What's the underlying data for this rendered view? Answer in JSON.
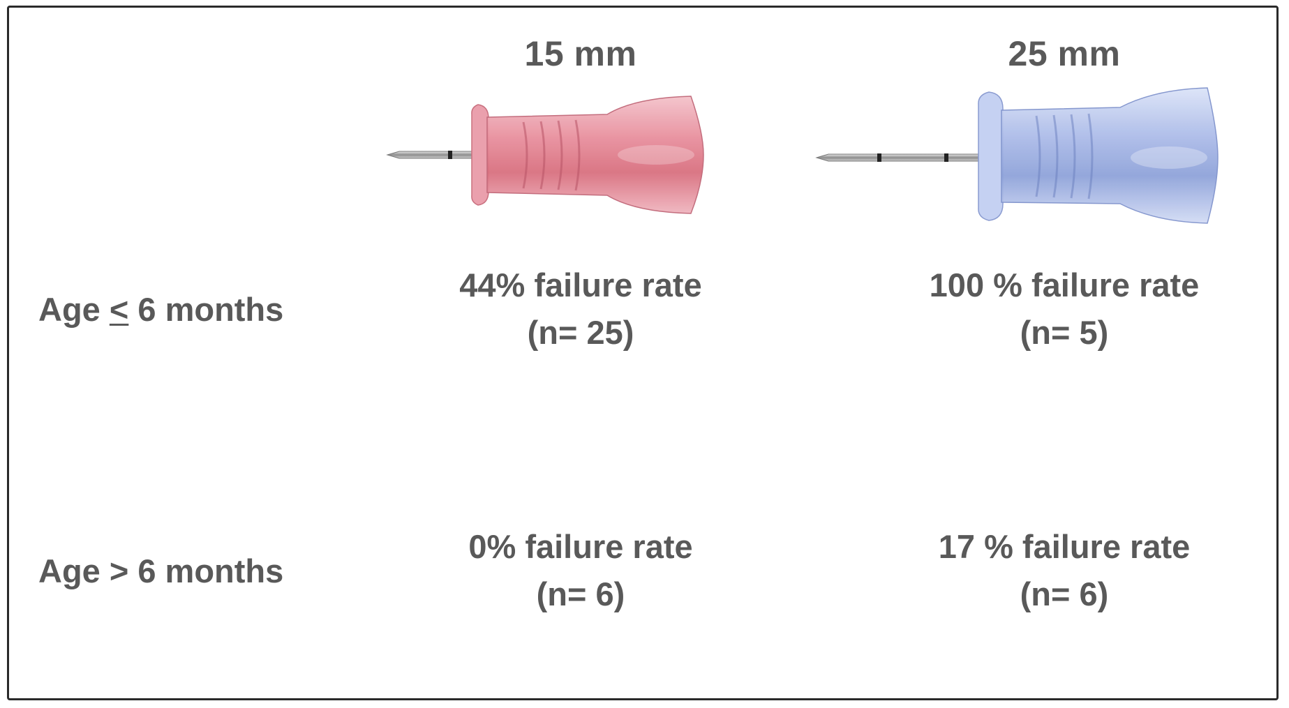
{
  "columns": [
    {
      "label": "15 mm",
      "image": "pink-pen-needle-15mm-icon",
      "color": "#e58a98"
    },
    {
      "label": "25 mm",
      "image": "blue-pen-needle-25mm-icon",
      "color": "#9fb3e8"
    }
  ],
  "rows": [
    {
      "label_prefix": "Age ",
      "label_symbol": "<",
      "label_suffix": " 6 months",
      "cells": [
        {
          "rate": "44% failure rate",
          "n": "(n= 25)"
        },
        {
          "rate": "100 % failure rate",
          "n": "(n= 5)"
        }
      ]
    },
    {
      "label": "Age > 6 months",
      "cells": [
        {
          "rate": "0% failure rate",
          "n": "(n= 6)"
        },
        {
          "rate": "17 % failure rate",
          "n": "(n= 6)"
        }
      ]
    }
  ],
  "colors": {
    "text": "#595959",
    "border": "#2a2a2a"
  }
}
